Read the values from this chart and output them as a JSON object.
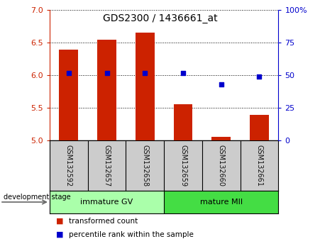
{
  "title": "GDS2300 / 1436661_at",
  "samples": [
    "GSM132592",
    "GSM132657",
    "GSM132658",
    "GSM132659",
    "GSM132660",
    "GSM132661"
  ],
  "bar_values": [
    6.39,
    6.55,
    6.65,
    5.56,
    5.06,
    5.39
  ],
  "bar_base": 5.0,
  "percentile_values": [
    52,
    52,
    52,
    52,
    43,
    49
  ],
  "ylim_left": [
    5.0,
    7.0
  ],
  "ylim_right": [
    0,
    100
  ],
  "yticks_left": [
    5.0,
    5.5,
    6.0,
    6.5,
    7.0
  ],
  "yticks_right": [
    0,
    25,
    50,
    75,
    100
  ],
  "yticklabels_right": [
    "0",
    "25",
    "50",
    "75",
    "100%"
  ],
  "bar_color": "#cc2200",
  "dot_color": "#0000cc",
  "group1_label": "immature GV",
  "group1_indices": [
    0,
    1,
    2
  ],
  "group1_color": "#aaffaa",
  "group2_label": "mature MII",
  "group2_indices": [
    3,
    4,
    5
  ],
  "group2_color": "#44dd44",
  "stage_label": "development stage",
  "legend_bar_label": "transformed count",
  "legend_dot_label": "percentile rank within the sample",
  "left_tick_color": "#cc2200",
  "right_tick_color": "#0000cc",
  "bar_width": 0.5,
  "sample_bg_color": "#cccccc",
  "plot_bg_color": "#ffffff"
}
